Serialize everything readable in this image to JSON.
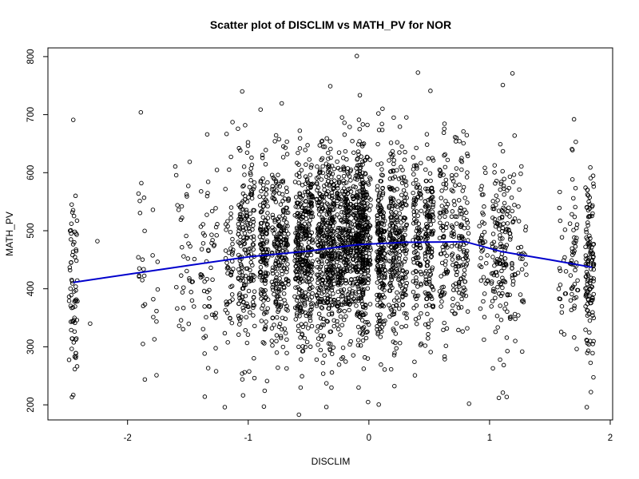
{
  "chart_data": {
    "type": "scatter",
    "title": "Scatter plot of DISCLIM vs MATH_PV for NOR",
    "xlabel": "DISCLIM",
    "ylabel": "MATH_PV",
    "xlim": [
      -2.66,
      2.02
    ],
    "ylim": [
      174,
      815
    ],
    "x_ticks": [
      -2,
      -1,
      0,
      1,
      2
    ],
    "y_ticks": [
      200,
      300,
      400,
      500,
      600,
      700,
      800
    ],
    "grid": false,
    "legend": "none",
    "point_color": "#000000",
    "smooth_color": "#0000cc",
    "points_sample": [
      {
        "x": -0.1,
        "y": 801
      },
      {
        "x": 1.11,
        "y": 751
      },
      {
        "x": -0.32,
        "y": 749
      },
      {
        "x": -1.05,
        "y": 740
      },
      {
        "x": 0.51,
        "y": 741
      },
      {
        "x": -0.58,
        "y": 183
      },
      {
        "x": -0.87,
        "y": 197
      },
      {
        "x": 0.83,
        "y": 202
      },
      {
        "x": 1.11,
        "y": 221
      },
      {
        "x": -2.45,
        "y": 691
      },
      {
        "x": -1.89,
        "y": 704
      },
      {
        "x": -2.45,
        "y": 217
      },
      {
        "x": -2.25,
        "y": 482
      },
      {
        "x": -2.31,
        "y": 340
      },
      {
        "x": -1.79,
        "y": 536
      },
      {
        "x": -1.76,
        "y": 251
      },
      {
        "x": 1.7,
        "y": 692
      },
      {
        "x": 1.84,
        "y": 222
      },
      {
        "x": -1.36,
        "y": 214
      },
      {
        "x": -1.34,
        "y": 666
      }
    ],
    "smooth_line": {
      "x": [
        -2.45,
        -1.5,
        -1.0,
        -0.5,
        -0.1,
        0.3,
        0.8,
        1.1,
        1.5,
        1.85
      ],
      "y": [
        411,
        440,
        455,
        465,
        476,
        480,
        481,
        464,
        450,
        437
      ]
    }
  }
}
